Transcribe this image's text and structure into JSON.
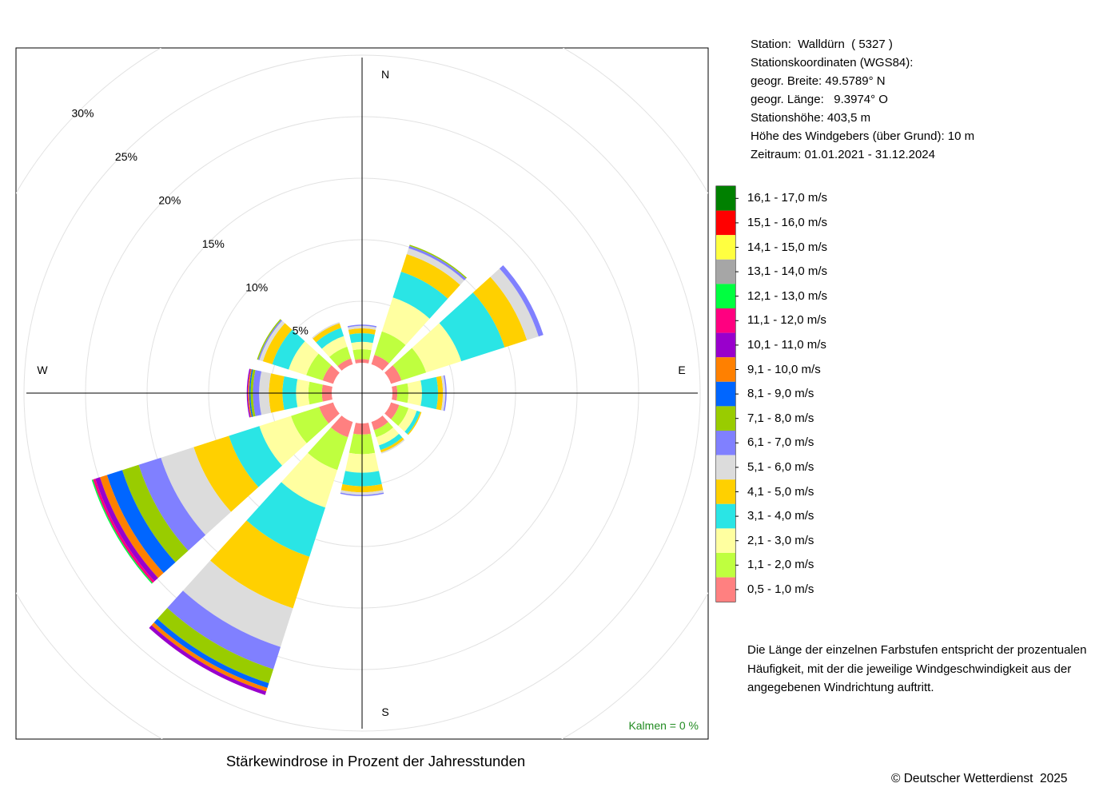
{
  "station_info": [
    "Station:  Walldürn  ( 5327 )",
    "Stationskoordinaten (WGS84):",
    "geogr. Breite: 49.5789° N",
    "geogr. Länge:   9.3974° O",
    "Stationshöhe: 403,5 m",
    "Höhe des Windgebers (über Grund): 10 m",
    "Zeitraum: 01.01.2021 - 31.12.2024"
  ],
  "explanation": "Die Länge der einzelnen Farbstufen entspricht der prozentualen Häufigkeit, mit der die jeweilige Windgeschwindigkeit aus der angegebenen Windrichtung auftritt.",
  "caption": "Stärkewindrose in Prozent der Jahresstunden",
  "copyright": "© Deutscher Wetterdienst  2025",
  "calm_label": "Kalmen  =  0 %",
  "calm_color": "#228B22",
  "chart_data": {
    "type": "polar-bar",
    "stacked": true,
    "direction_labels": [
      "N",
      "E",
      "S",
      "W"
    ],
    "ring_labels": [
      "5%",
      "10%",
      "15%",
      "20%",
      "25%",
      "30%"
    ],
    "ring_values": [
      5,
      10,
      15,
      20,
      25,
      30
    ],
    "rmax": 30,
    "directions_deg": [
      0,
      30,
      60,
      90,
      120,
      150,
      180,
      210,
      240,
      270,
      300,
      330
    ],
    "classes": [
      {
        "label": "0,5 - 1,0 m/s",
        "color": "#FF8080"
      },
      {
        "label": "1,1 - 2,0 m/s",
        "color": "#BFFF3F"
      },
      {
        "label": "2,1 - 3,0 m/s",
        "color": "#FFFFA0"
      },
      {
        "label": "3,1 - 4,0 m/s",
        "color": "#2AE5E5"
      },
      {
        "label": "4,1 - 5,0 m/s",
        "color": "#FFD000"
      },
      {
        "label": "5,1 - 6,0 m/s",
        "color": "#DCDCDC"
      },
      {
        "label": "6,1 - 7,0 m/s",
        "color": "#8080FF"
      },
      {
        "label": "7,1 - 8,0 m/s",
        "color": "#99CC00"
      },
      {
        "label": "8,1 - 9,0 m/s",
        "color": "#0066FF"
      },
      {
        "label": "9,1 - 10,0 m/s",
        "color": "#FF8000"
      },
      {
        "label": "10,1 - 11,0 m/s",
        "color": "#9900CC"
      },
      {
        "label": "11,1 - 12,0 m/s",
        "color": "#FF0080"
      },
      {
        "label": "12,1 - 13,0 m/s",
        "color": "#00FF40"
      },
      {
        "label": "13,1 - 14,0 m/s",
        "color": "#A6A6A6"
      },
      {
        "label": "14,1 - 15,0 m/s",
        "color": "#FFFF40"
      },
      {
        "label": "15,1 - 16,0 m/s",
        "color": "#FF0000"
      },
      {
        "label": "16,1 - 17,0 m/s",
        "color": "#008000"
      }
    ],
    "values": [
      [
        0.3,
        0.8,
        0.6,
        0.7,
        0.4,
        0.2,
        0.1,
        0,
        0,
        0,
        0,
        0,
        0,
        0,
        0,
        0,
        0
      ],
      [
        0.8,
        2.0,
        2.9,
        2.2,
        1.5,
        0.5,
        0.2,
        0.1,
        0,
        0,
        0,
        0,
        0,
        0,
        0,
        0,
        0
      ],
      [
        0.9,
        2.1,
        3.0,
        3.7,
        1.9,
        1.0,
        0.4,
        0,
        0,
        0,
        0,
        0,
        0,
        0,
        0,
        0,
        0
      ],
      [
        0.4,
        0.9,
        1.1,
        1.3,
        0.4,
        0.2,
        0.1,
        0,
        0,
        0,
        0,
        0,
        0,
        0,
        0,
        0,
        0
      ],
      [
        0.7,
        0.8,
        0.7,
        0.3,
        0.1,
        0,
        0,
        0,
        0,
        0,
        0,
        0,
        0,
        0,
        0,
        0,
        0
      ],
      [
        0.7,
        0.6,
        0.7,
        0.4,
        0.2,
        0.1,
        0,
        0,
        0,
        0,
        0,
        0,
        0,
        0,
        0,
        0,
        0
      ],
      [
        0.9,
        1.6,
        1.5,
        1.1,
        0.5,
        0.2,
        0.1,
        0,
        0,
        0,
        0,
        0,
        0,
        0,
        0,
        0,
        0
      ],
      [
        1.3,
        2.8,
        3.2,
        4.2,
        4.4,
        3.3,
        1.9,
        1.2,
        0.4,
        0.3,
        0.3,
        0,
        0,
        0,
        0,
        0,
        0
      ],
      [
        1.2,
        2.4,
        2.7,
        2.6,
        3.0,
        2.8,
        1.9,
        1.4,
        1.3,
        0.6,
        0.4,
        0.2,
        0.1,
        0,
        0,
        0,
        0
      ],
      [
        0.8,
        1.1,
        1.0,
        1.1,
        1.1,
        0.8,
        0.5,
        0.2,
        0.1,
        0.1,
        0.1,
        0,
        0,
        0,
        0,
        0,
        0
      ],
      [
        0.9,
        1.4,
        1.5,
        1.4,
        0.8,
        0.3,
        0.1,
        0.1,
        0,
        0,
        0,
        0,
        0,
        0,
        0,
        0,
        0
      ],
      [
        0.5,
        1.0,
        0.9,
        0.7,
        0.4,
        0.1,
        0,
        0,
        0,
        0,
        0,
        0,
        0,
        0,
        0,
        0,
        0
      ]
    ]
  }
}
